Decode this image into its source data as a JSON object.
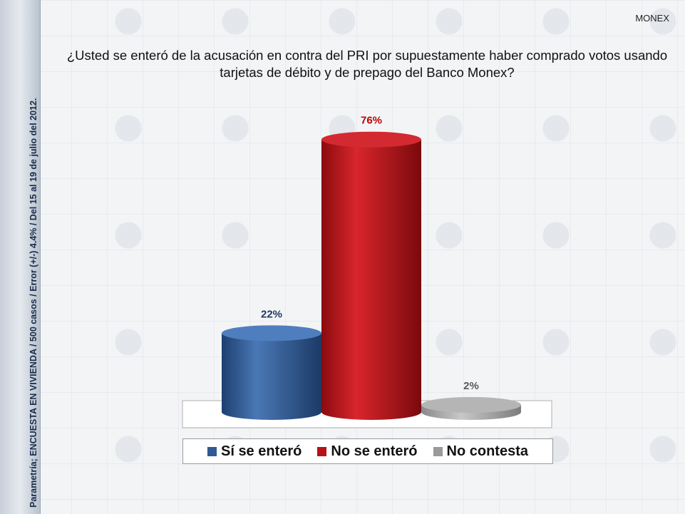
{
  "brand": "MONEX",
  "side_note": "Parametría; ENCUESTA EN VIVIENDA / 500 casos / Error (+/-) 4.4% / Del 15 al 19 de julio del 2012.",
  "colors": {
    "si": "#2f5a94",
    "no": "#b51217",
    "nc": "#9a9a9a"
  },
  "chart_data": {
    "type": "bar",
    "title": "¿Usted se enteró de la acusación en contra del PRI por supuestamente haber comprado votos usando tarjetas de débito y de prepago del Banco Monex?",
    "categories": [
      "Sí se enteró",
      "No se enteró",
      "No contesta"
    ],
    "values": [
      22,
      76,
      2
    ],
    "labels": [
      "22%",
      "76%",
      "2%"
    ],
    "label_colors": [
      "#1f3864",
      "#c00000",
      "#595959"
    ],
    "ylim": [
      0,
      100
    ],
    "legend_position": "bottom",
    "legend": [
      "Sí se enteró",
      "No se enteró",
      "No contesta"
    ]
  }
}
